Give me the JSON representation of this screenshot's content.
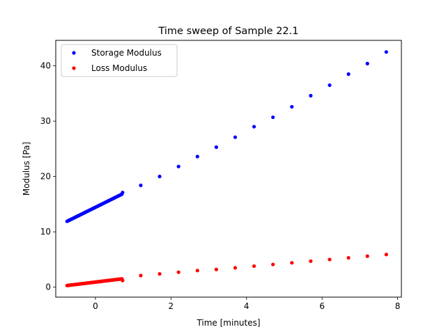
{
  "chart_data": {
    "type": "scatter",
    "title": "Time sweep of Sample 22.1",
    "xlabel": "Time [minutes]",
    "ylabel": "Modulus [Pa]",
    "xlim": [
      -1.05,
      8.1
    ],
    "ylim": [
      -1.8,
      44.6
    ],
    "xticks": [
      0,
      2,
      4,
      6,
      8
    ],
    "yticks": [
      0,
      10,
      20,
      30,
      40
    ],
    "grid": false,
    "legend": "upper-left",
    "series": [
      {
        "name": "Storage Modulus",
        "color": "#0000ff",
        "dense": {
          "x_start": -0.75,
          "x_end": 0.7,
          "y_start": 11.9,
          "y_end": 16.8,
          "count": 60
        },
        "x": [
          0.72,
          1.2,
          1.7,
          2.2,
          2.7,
          3.2,
          3.7,
          4.2,
          4.7,
          5.2,
          5.7,
          6.2,
          6.7,
          7.2,
          7.7
        ],
        "y": [
          17.1,
          18.4,
          20.0,
          21.8,
          23.6,
          25.3,
          27.1,
          29.0,
          30.7,
          32.6,
          34.6,
          36.5,
          38.5,
          40.4,
          42.5
        ]
      },
      {
        "name": "Loss Modulus",
        "color": "#ff0000",
        "dense": {
          "x_start": -0.75,
          "x_end": 0.7,
          "y_start": 0.3,
          "y_end": 1.5,
          "count": 60
        },
        "x": [
          0.72,
          1.2,
          1.7,
          2.2,
          2.7,
          3.2,
          3.7,
          4.2,
          4.7,
          5.2,
          5.7,
          6.2,
          6.7,
          7.2,
          7.7
        ],
        "y": [
          1.2,
          2.1,
          2.4,
          2.7,
          3.0,
          3.2,
          3.5,
          3.8,
          4.1,
          4.4,
          4.7,
          5.0,
          5.3,
          5.6,
          5.9
        ]
      }
    ]
  }
}
